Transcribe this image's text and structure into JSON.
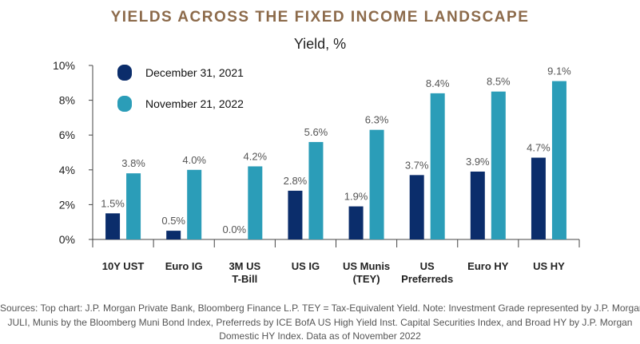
{
  "header": {
    "title": "YIELDS ACROSS THE FIXED INCOME LANDSCAPE",
    "subtitle": "Yield, %"
  },
  "chart_data": {
    "type": "bar",
    "title": "YIELDS ACROSS THE FIXED INCOME LANDSCAPE",
    "ylabel": "Yield, %",
    "ylim": [
      0,
      10
    ],
    "yticks": [
      "0%",
      "2%",
      "4%",
      "6%",
      "8%",
      "10%"
    ],
    "categories": [
      [
        "10Y UST"
      ],
      [
        "Euro IG"
      ],
      [
        "3M US",
        "T-Bill"
      ],
      [
        "US IG"
      ],
      [
        "US Munis",
        "(TEY)"
      ],
      [
        "US",
        "Preferreds"
      ],
      [
        "Euro HY"
      ],
      [
        "US HY"
      ]
    ],
    "series": [
      {
        "name": "December 31, 2021",
        "color": "#0b2d6b",
        "values": [
          1.5,
          0.5,
          0.0,
          2.8,
          1.9,
          3.7,
          3.9,
          4.7
        ],
        "labels": [
          "1.5%",
          "0.5%",
          "0.0%",
          "2.8%",
          "1.9%",
          "3.7%",
          "3.9%",
          "4.7%"
        ]
      },
      {
        "name": "November 21, 2022",
        "color": "#2b9db8",
        "values": [
          3.8,
          4.0,
          4.2,
          5.6,
          6.3,
          8.4,
          8.5,
          9.1
        ],
        "labels": [
          "3.8%",
          "4.0%",
          "4.2%",
          "5.6%",
          "6.3%",
          "8.4%",
          "8.5%",
          "9.1%"
        ]
      }
    ],
    "legend": "top-left",
    "grid": false
  },
  "footer": {
    "source_lines": [
      "Sources: Top chart: J.P. Morgan Private Bank, Bloomberg Finance L.P. TEY = Tax-Equivalent Yield. Note: Investment Grade represented by J.P. Morgan",
      "JULI, Munis by the Bloomberg Muni Bond Index, Preferreds by ICE BofA US High Yield Inst. Capital Securities Index, and Broad HY by J.P. Morgan",
      "Domestic HY Index. Data as of November 2022"
    ]
  }
}
